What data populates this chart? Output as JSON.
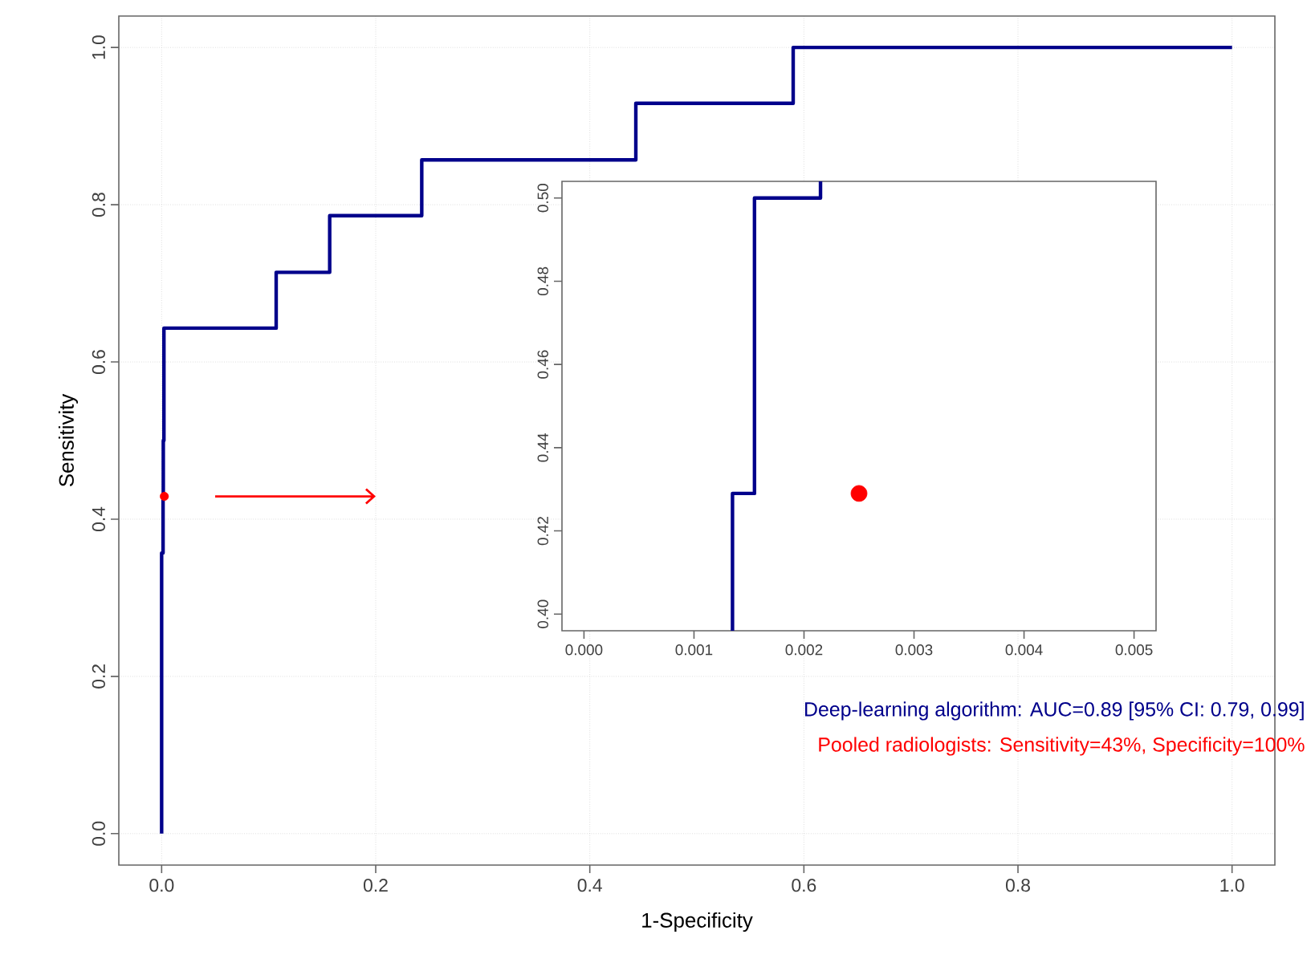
{
  "chart_data": [
    {
      "type": "line",
      "xlabel": "1-Specificity",
      "ylabel": "Sensitivity",
      "xlim": [
        -0.04,
        1.04
      ],
      "ylim": [
        -0.04,
        1.04
      ],
      "xticks": [
        {
          "value": 0,
          "label": "0.0"
        },
        {
          "value": 0.2,
          "label": "0.2"
        },
        {
          "value": 0.4,
          "label": "0.4"
        },
        {
          "value": 0.6,
          "label": "0.6"
        },
        {
          "value": 0.8,
          "label": "0.8"
        },
        {
          "value": 1,
          "label": "1.0"
        }
      ],
      "yticks": [
        {
          "value": 0,
          "label": "0.0"
        },
        {
          "value": 0.2,
          "label": "0.2"
        },
        {
          "value": 0.4,
          "label": "0.4"
        },
        {
          "value": 0.6,
          "label": "0.6"
        },
        {
          "value": 0.8,
          "label": "0.8"
        },
        {
          "value": 1,
          "label": "1.0"
        }
      ],
      "grid": true,
      "series": [
        {
          "color": "#00008b",
          "x": [
            0,
            0,
            0.00135,
            0.00135,
            0.00155,
            0.00155,
            0.00215,
            0.00215,
            0.107,
            0.107,
            0.157,
            0.157,
            0.243,
            0.243,
            0.443,
            0.443,
            0.59,
            0.59,
            1
          ],
          "values": [
            0,
            0.357,
            0.357,
            0.429,
            0.429,
            0.5,
            0.5,
            0.643,
            0.643,
            0.714,
            0.714,
            0.786,
            0.786,
            0.857,
            0.857,
            0.929,
            0.929,
            1,
            1
          ]
        },
        {
          "type": "scatter",
          "color": "#ff0000",
          "x": [
            0.0025
          ],
          "values": [
            0.429
          ]
        }
      ],
      "annotations": [
        "Deep-learning algorithm: AUC=0.89 [95% CI: 0.79, 0.99]",
        "Pooled radiologists: Sensitivity=43%, Specificity=100%"
      ]
    },
    {
      "type": "line",
      "xlim": [
        -0.0002,
        0.0052
      ],
      "ylim": [
        0.396,
        0.504
      ],
      "xticks": [
        {
          "value": 0,
          "label": "0.000"
        },
        {
          "value": 0.001,
          "label": "0.001"
        },
        {
          "value": 0.002,
          "label": "0.002"
        },
        {
          "value": 0.003,
          "label": "0.003"
        },
        {
          "value": 0.004,
          "label": "0.004"
        },
        {
          "value": 0.005,
          "label": "0.005"
        }
      ],
      "yticks": [
        {
          "value": 0.4,
          "label": "0.40"
        },
        {
          "value": 0.42,
          "label": "0.42"
        },
        {
          "value": 0.44,
          "label": "0.44"
        },
        {
          "value": 0.46,
          "label": "0.46"
        },
        {
          "value": 0.48,
          "label": "0.48"
        },
        {
          "value": 0.5,
          "label": "0.50"
        }
      ],
      "series": [
        {
          "color": "#00008b",
          "x": [
            0.00135,
            0.00135,
            0.00155,
            0.00155,
            0.00215,
            0.00215
          ],
          "values": [
            0.396,
            0.429,
            0.429,
            0.5,
            0.5,
            0.504
          ]
        },
        {
          "type": "scatter",
          "color": "#ff0000",
          "x": [
            0.0025
          ],
          "values": [
            0.429
          ]
        }
      ]
    }
  ]
}
